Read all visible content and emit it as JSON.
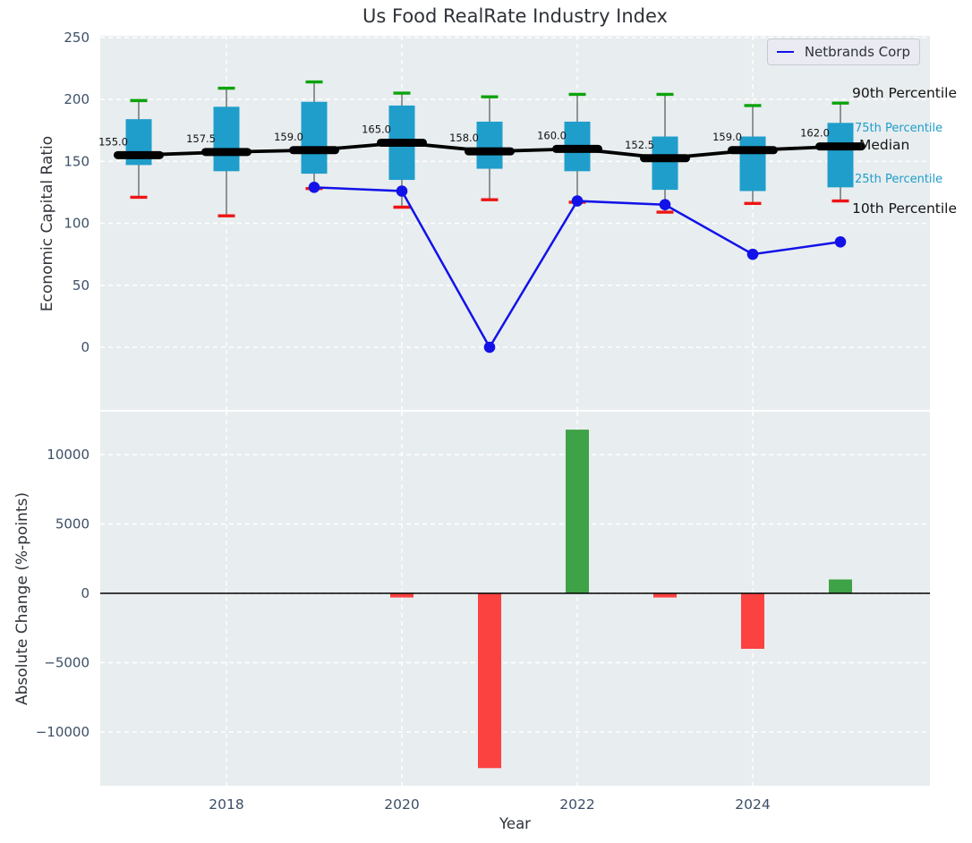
{
  "chart_data": [
    {
      "type": "boxplot+line",
      "title": "Us Food RealRate Industry Index",
      "ylabel": "Economic Capital Ratio",
      "ylim": [
        -50,
        251
      ],
      "yticks": [
        0,
        50,
        100,
        150,
        200,
        250
      ],
      "xticks": [
        2018,
        2020,
        2022,
        2024
      ],
      "grid": true,
      "legend_position": "upper right",
      "boxes": [
        {
          "year": 2017,
          "p90": 199,
          "p75": 184,
          "median": 155.0,
          "p25": 147,
          "p10": 121,
          "label": "155.0"
        },
        {
          "year": 2018,
          "p90": 209,
          "p75": 194,
          "median": 157.5,
          "p25": 142,
          "p10": 106,
          "label": "157.5"
        },
        {
          "year": 2019,
          "p90": 214,
          "p75": 198,
          "median": 159.0,
          "p25": 140,
          "p10": 128,
          "label": "159.0"
        },
        {
          "year": 2020,
          "p90": 205,
          "p75": 195,
          "median": 165.0,
          "p25": 135,
          "p10": 113,
          "label": "165.0"
        },
        {
          "year": 2021,
          "p90": 202,
          "p75": 182,
          "median": 158.0,
          "p25": 144,
          "p10": 119,
          "label": "158.0"
        },
        {
          "year": 2022,
          "p90": 204,
          "p75": 182,
          "median": 160.0,
          "p25": 142,
          "p10": 117,
          "label": "160.0"
        },
        {
          "year": 2023,
          "p90": 204,
          "p75": 170,
          "median": 152.5,
          "p25": 127,
          "p10": 109,
          "label": "152.5"
        },
        {
          "year": 2024,
          "p90": 195,
          "p75": 170,
          "median": 159.0,
          "p25": 126,
          "p10": 116,
          "label": "159.0"
        },
        {
          "year": 2025,
          "p90": 197,
          "p75": 181,
          "median": 162.0,
          "p25": 129,
          "p10": 118,
          "label": "162.0"
        }
      ],
      "series": [
        {
          "name": "Netbrands Corp",
          "x": [
            2019,
            2020,
            2021,
            2022,
            2023,
            2024,
            2025
          ],
          "values": [
            129,
            126,
            0,
            118,
            115,
            75,
            85
          ]
        }
      ],
      "annotations": [
        {
          "text": "90th Percentile",
          "color": "dark"
        },
        {
          "text": "75th Percentile",
          "color": "accent"
        },
        {
          "text": "Median",
          "color": "dark"
        },
        {
          "text": "25th Percentile",
          "color": "accent"
        },
        {
          "text": "10th Percentile",
          "color": "dark"
        }
      ]
    },
    {
      "type": "bar",
      "ylabel": "Absolute Change (%-points)",
      "xlabel": "Year",
      "ylim": [
        -13870,
        13100
      ],
      "yticks": [
        -10000,
        -5000,
        0,
        5000,
        10000
      ],
      "xticks": [
        2018,
        2020,
        2022,
        2024
      ],
      "grid": true,
      "categories": [
        2020,
        2021,
        2022,
        2023,
        2024,
        2025
      ],
      "values": [
        -300,
        -12600,
        11800,
        -300,
        -4000,
        1000
      ]
    }
  ],
  "colors": {
    "plot_background": "#e8edef",
    "gridline": "#ffffff",
    "box_fill": "#1f9ecb",
    "whisker": "#545454",
    "cap_90th": "#0ca30c",
    "cap_10th": "#ee1414",
    "median_line": "#000000",
    "company_line": "#1212e8",
    "bar_positive": "#3ea246",
    "bar_negative": "#fc4141",
    "tick_text": "#3d5067",
    "label_text": "#30343a",
    "accent_text": "#1f9ecb"
  }
}
